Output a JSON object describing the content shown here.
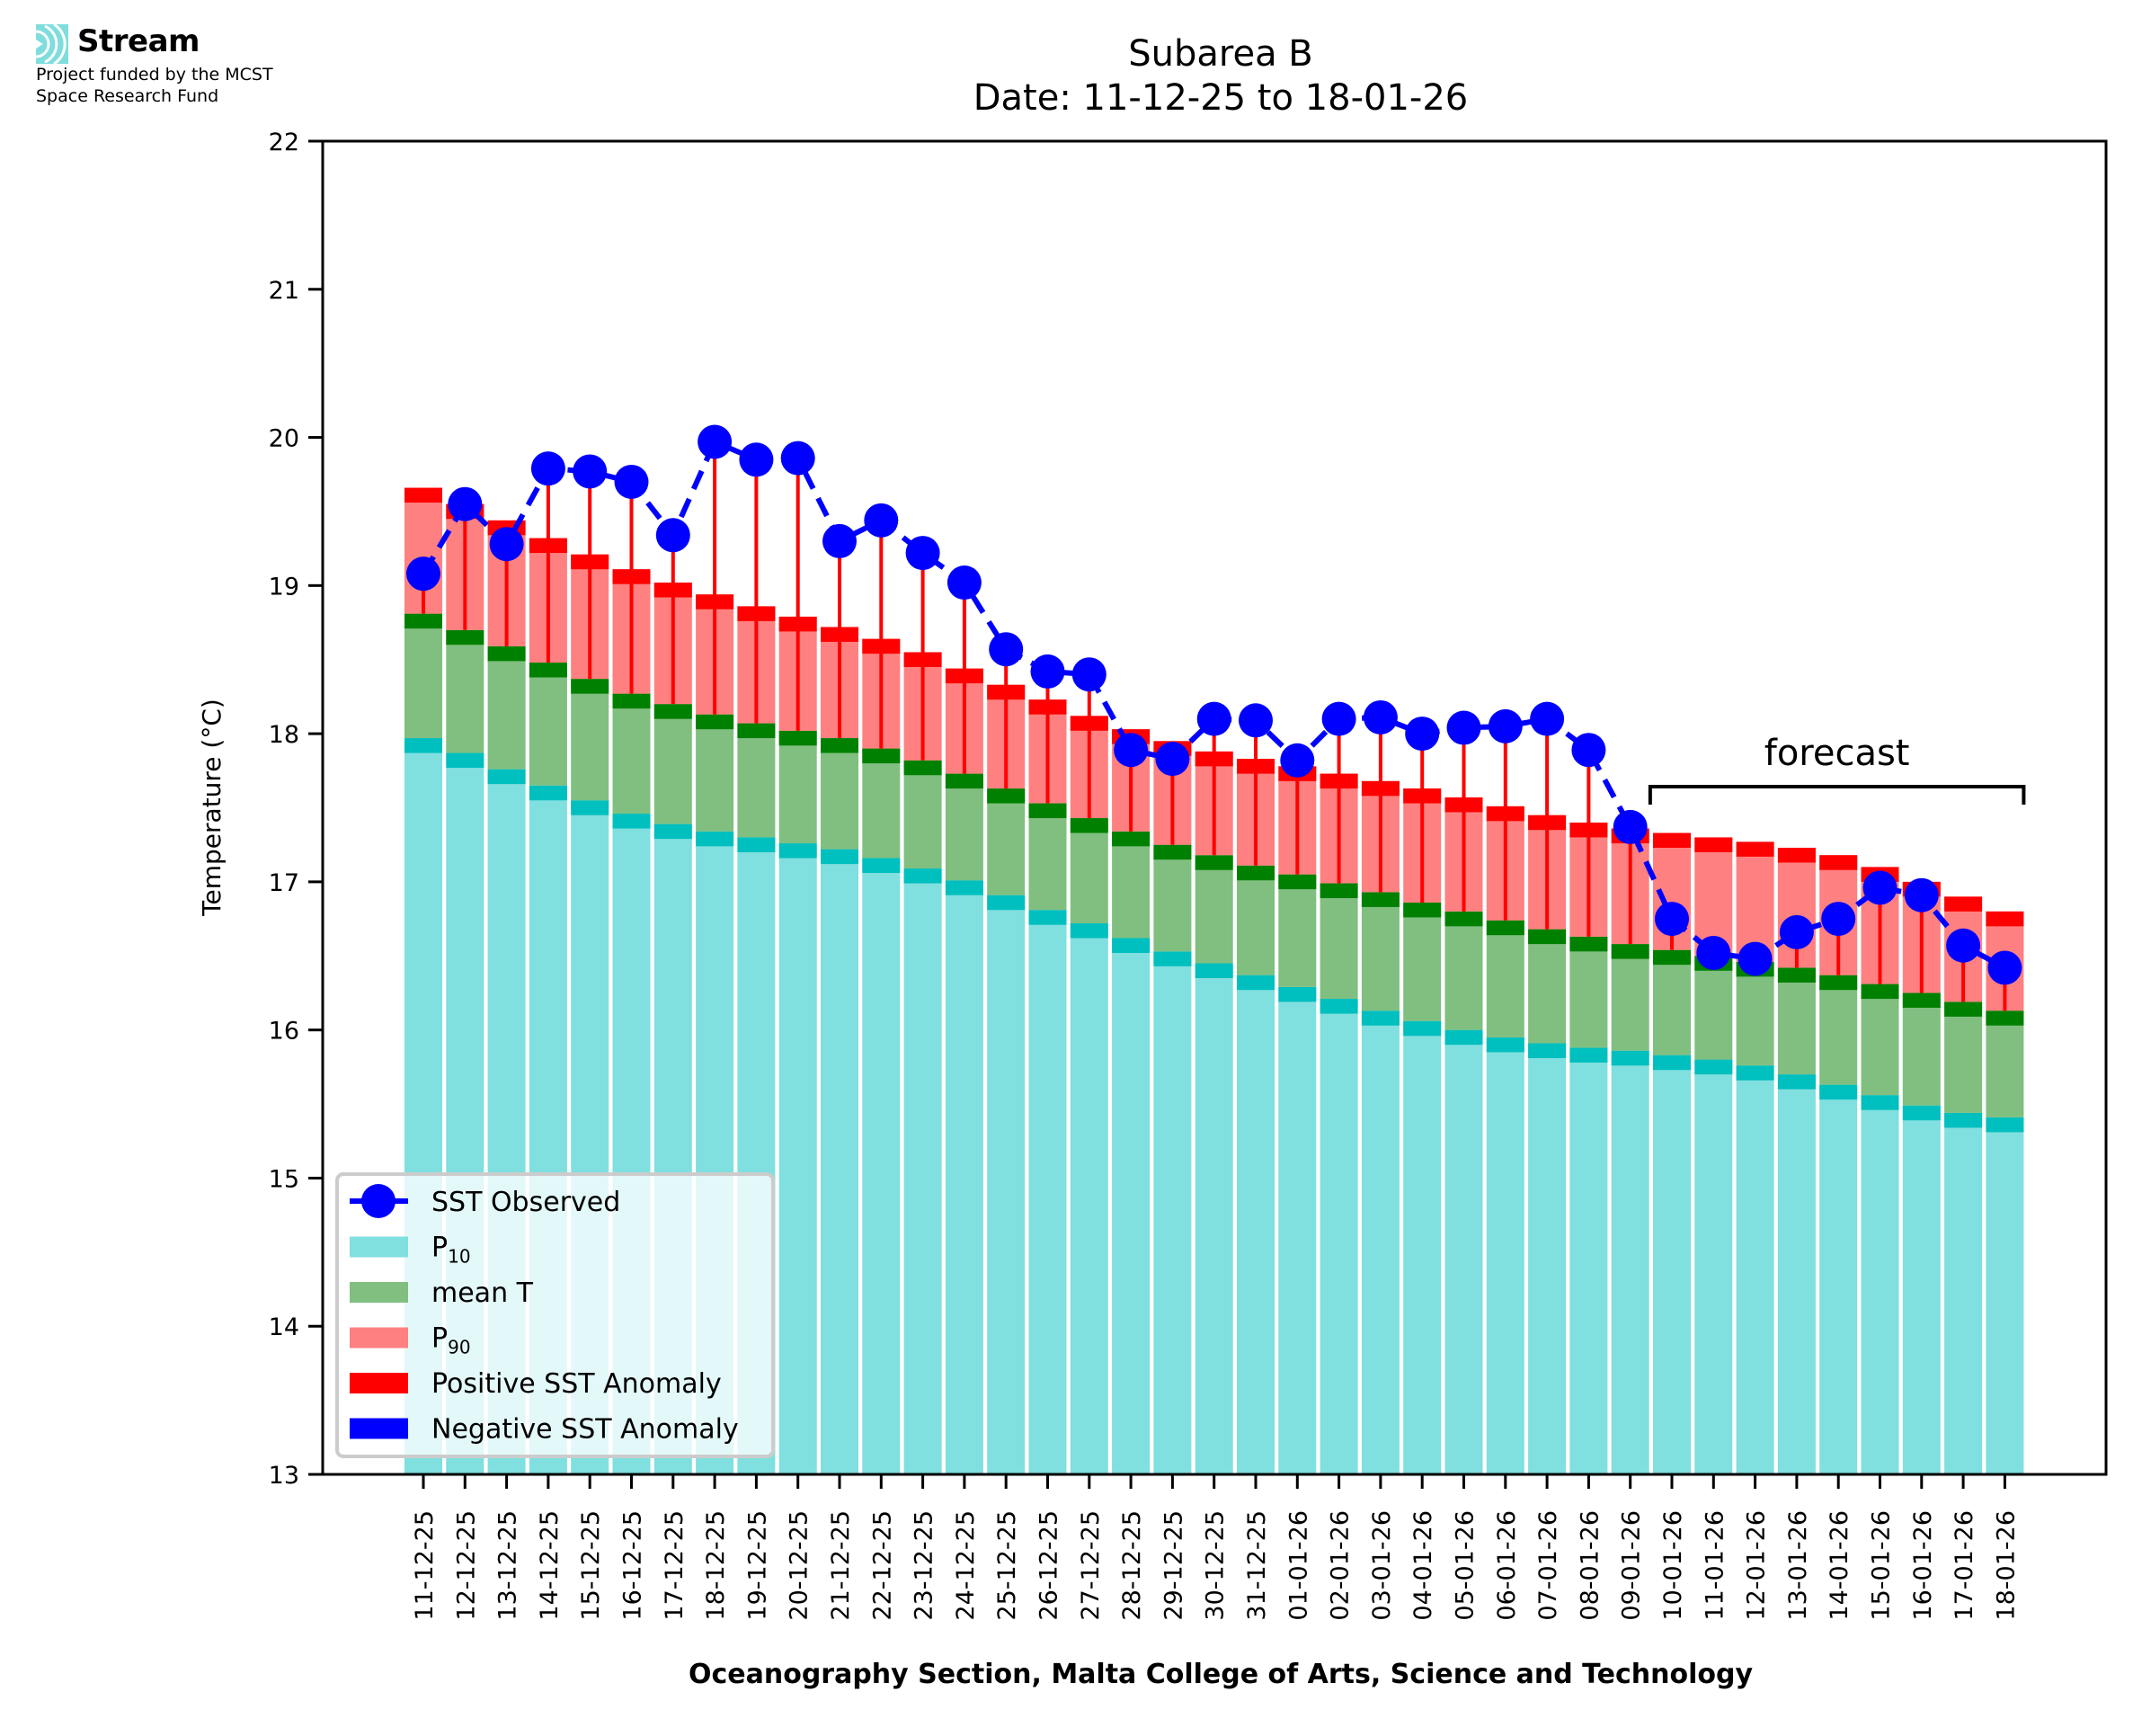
{
  "branding": {
    "logo_icon": "stream-waves-icon",
    "name": "Stream",
    "funding_line1": "Project funded by the MCST",
    "funding_line2": "Space Research Fund"
  },
  "colors": {
    "p10_fill": "#80DFDF",
    "p10_band": "#00BFBF",
    "mean_fill": "#80BF80",
    "mean_band": "#008000",
    "p90_fill": "#FF8080",
    "p90_band": "#FF0000",
    "sst": "#0000FF",
    "positive_anomaly": "#FF0000",
    "negative_anomaly": "#0000FF"
  },
  "chart_data": {
    "type": "bar",
    "title": "Subarea B",
    "subtitle": "Date: 11-12-25 to 18-01-26",
    "xlabel": "Oceanography Section, Malta College of Arts, Science and Technology",
    "ylabel": "Temperature (°C)",
    "ylim": [
      13,
      22
    ],
    "yticks": [
      "13",
      "14",
      "15",
      "16",
      "17",
      "18",
      "19",
      "20",
      "21",
      "22"
    ],
    "grid": false,
    "legend_position": "lower-left",
    "categories": [
      "11-12-25",
      "12-12-25",
      "13-12-25",
      "14-12-25",
      "15-12-25",
      "16-12-25",
      "17-12-25",
      "18-12-25",
      "19-12-25",
      "20-12-25",
      "21-12-25",
      "22-12-25",
      "23-12-25",
      "24-12-25",
      "25-12-25",
      "26-12-25",
      "27-12-25",
      "28-12-25",
      "29-12-25",
      "30-12-25",
      "31-12-25",
      "01-01-26",
      "02-01-26",
      "03-01-26",
      "04-01-26",
      "05-01-26",
      "06-01-26",
      "07-01-26",
      "08-01-26",
      "09-01-26",
      "10-01-26",
      "11-01-26",
      "12-01-26",
      "13-01-26",
      "14-01-26",
      "15-01-26",
      "16-01-26",
      "17-01-26",
      "18-01-26"
    ],
    "series": [
      {
        "name": "P10",
        "type": "bar",
        "values": [
          17.97,
          17.87,
          17.76,
          17.65,
          17.55,
          17.46,
          17.39,
          17.34,
          17.3,
          17.26,
          17.22,
          17.16,
          17.09,
          17.01,
          16.91,
          16.81,
          16.72,
          16.62,
          16.53,
          16.45,
          16.37,
          16.29,
          16.21,
          16.13,
          16.06,
          16.0,
          15.95,
          15.91,
          15.88,
          15.86,
          15.83,
          15.8,
          15.76,
          15.7,
          15.63,
          15.56,
          15.49,
          15.44,
          15.41
        ]
      },
      {
        "name": "mean T",
        "type": "bar",
        "values": [
          18.81,
          18.7,
          18.59,
          18.48,
          18.37,
          18.27,
          18.2,
          18.13,
          18.07,
          18.02,
          17.97,
          17.9,
          17.82,
          17.73,
          17.63,
          17.53,
          17.43,
          17.34,
          17.25,
          17.18,
          17.11,
          17.05,
          16.99,
          16.93,
          16.86,
          16.8,
          16.74,
          16.68,
          16.63,
          16.58,
          16.54,
          16.5,
          16.46,
          16.42,
          16.37,
          16.31,
          16.25,
          16.19,
          16.13
        ]
      },
      {
        "name": "P90",
        "type": "bar",
        "values": [
          19.66,
          19.55,
          19.44,
          19.32,
          19.21,
          19.11,
          19.02,
          18.94,
          18.86,
          18.79,
          18.72,
          18.64,
          18.55,
          18.44,
          18.33,
          18.23,
          18.12,
          18.03,
          17.95,
          17.88,
          17.83,
          17.78,
          17.73,
          17.68,
          17.63,
          17.57,
          17.51,
          17.45,
          17.4,
          17.36,
          17.33,
          17.3,
          17.27,
          17.23,
          17.18,
          17.1,
          17.0,
          16.9,
          16.8
        ]
      },
      {
        "name": "SST Observed",
        "type": "line",
        "values": [
          19.08,
          19.55,
          19.28,
          19.79,
          19.77,
          19.7,
          19.34,
          19.97,
          19.85,
          19.86,
          19.3,
          19.44,
          19.22,
          19.02,
          18.57,
          18.42,
          18.4,
          17.89,
          17.83,
          18.1,
          18.09,
          17.82,
          18.1,
          18.11,
          18.0,
          18.04,
          18.05,
          18.1,
          17.89,
          17.37,
          16.75,
          16.52,
          16.48,
          16.66,
          16.75,
          16.96,
          16.91,
          16.57,
          16.42
        ]
      }
    ],
    "legend": [
      {
        "label": "SST Observed",
        "kind": "line-marker",
        "color_key": "sst"
      },
      {
        "label": "P",
        "sub": "10",
        "kind": "patch",
        "color_key": "p10_fill"
      },
      {
        "label": "mean T",
        "kind": "patch",
        "color_key": "mean_fill"
      },
      {
        "label": "P",
        "sub": "90",
        "kind": "patch",
        "color_key": "p90_fill"
      },
      {
        "label": "Positive SST Anomaly",
        "kind": "patch",
        "color_key": "positive_anomaly"
      },
      {
        "label": "Negative SST Anomaly",
        "kind": "patch",
        "color_key": "negative_anomaly"
      }
    ],
    "annotations": [
      {
        "text": "forecast",
        "kind": "bracket",
        "from_category": "10-01-26",
        "to_category": "18-01-26"
      }
    ]
  }
}
